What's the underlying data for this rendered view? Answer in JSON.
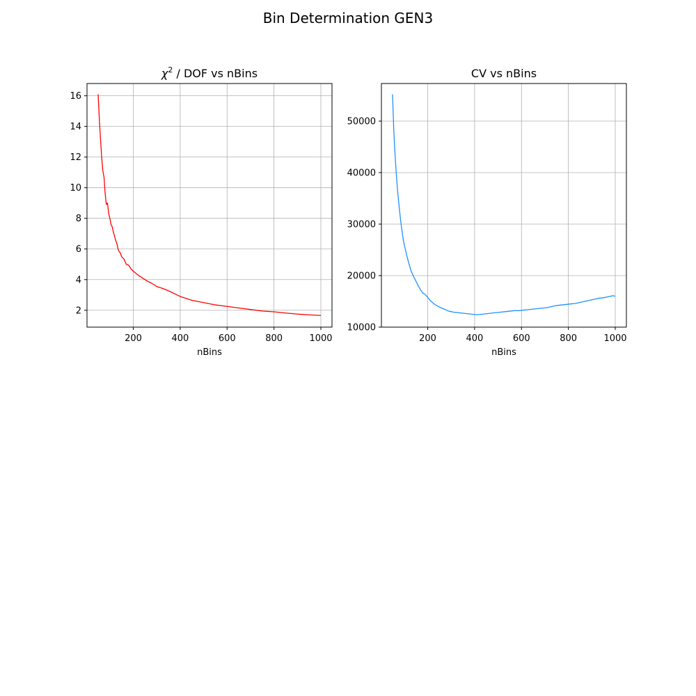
{
  "figure": {
    "title": "Bin Determination GEN3"
  },
  "chart_data": [
    {
      "type": "line",
      "title_main": "χ",
      "title_sup": "2",
      "title_rest": " / DOF vs nBins",
      "xlabel": "nBins",
      "ylabel": "",
      "xlim": [
        2.5,
        1047.5
      ],
      "ylim": [
        0.9,
        16.8
      ],
      "xticks": [
        200,
        400,
        600,
        800,
        1000
      ],
      "yticks": [
        2,
        4,
        6,
        8,
        10,
        12,
        14,
        16
      ],
      "grid": true,
      "color": "#ff0000",
      "x": [
        50,
        55,
        60,
        65,
        70,
        75,
        80,
        85,
        90,
        95,
        100,
        105,
        110,
        115,
        120,
        125,
        130,
        135,
        140,
        145,
        150,
        160,
        170,
        180,
        190,
        200,
        220,
        240,
        260,
        280,
        300,
        330,
        360,
        400,
        450,
        500,
        550,
        600,
        650,
        700,
        750,
        800,
        850,
        900,
        950,
        1000
      ],
      "y": [
        16.1,
        14.5,
        13.2,
        12.0,
        11.1,
        10.7,
        9.6,
        8.9,
        9.0,
        8.3,
        8.0,
        7.6,
        7.45,
        7.1,
        6.85,
        6.55,
        6.35,
        6.0,
        5.8,
        5.75,
        5.5,
        5.35,
        5.0,
        4.95,
        4.7,
        4.55,
        4.3,
        4.1,
        3.9,
        3.75,
        3.55,
        3.4,
        3.2,
        2.9,
        2.65,
        2.5,
        2.35,
        2.25,
        2.15,
        2.05,
        1.95,
        1.9,
        1.82,
        1.75,
        1.7,
        1.66
      ]
    },
    {
      "type": "line",
      "title": "CV vs nBins",
      "xlabel": "nBins",
      "ylabel": "",
      "xlim": [
        2.5,
        1047.5
      ],
      "ylim": [
        10000,
        57300
      ],
      "xticks": [
        200,
        400,
        600,
        800,
        1000
      ],
      "yticks": [
        10000,
        20000,
        30000,
        40000,
        50000
      ],
      "grid": true,
      "color": "#1e90ff",
      "x": [
        50,
        55,
        60,
        65,
        70,
        75,
        80,
        85,
        90,
        95,
        100,
        110,
        120,
        130,
        140,
        150,
        160,
        170,
        180,
        190,
        200,
        210,
        220,
        230,
        250,
        270,
        290,
        310,
        330,
        350,
        370,
        390,
        410,
        430,
        450,
        470,
        490,
        510,
        530,
        550,
        570,
        590,
        610,
        630,
        650,
        670,
        690,
        710,
        730,
        750,
        770,
        790,
        810,
        830,
        850,
        870,
        890,
        910,
        930,
        950,
        970,
        990,
        1000
      ],
      "y": [
        55200,
        48500,
        44000,
        40500,
        37200,
        34800,
        32600,
        30500,
        28800,
        27200,
        26000,
        24000,
        22300,
        20800,
        19800,
        18900,
        18000,
        17200,
        16600,
        16300,
        15800,
        15200,
        14800,
        14400,
        13900,
        13500,
        13100,
        12900,
        12800,
        12700,
        12600,
        12500,
        12400,
        12500,
        12600,
        12700,
        12800,
        12900,
        13000,
        13100,
        13200,
        13200,
        13300,
        13400,
        13500,
        13600,
        13700,
        13800,
        14000,
        14200,
        14300,
        14400,
        14500,
        14600,
        14800,
        15000,
        15200,
        15400,
        15600,
        15700,
        15900,
        16100,
        16000
      ]
    }
  ]
}
